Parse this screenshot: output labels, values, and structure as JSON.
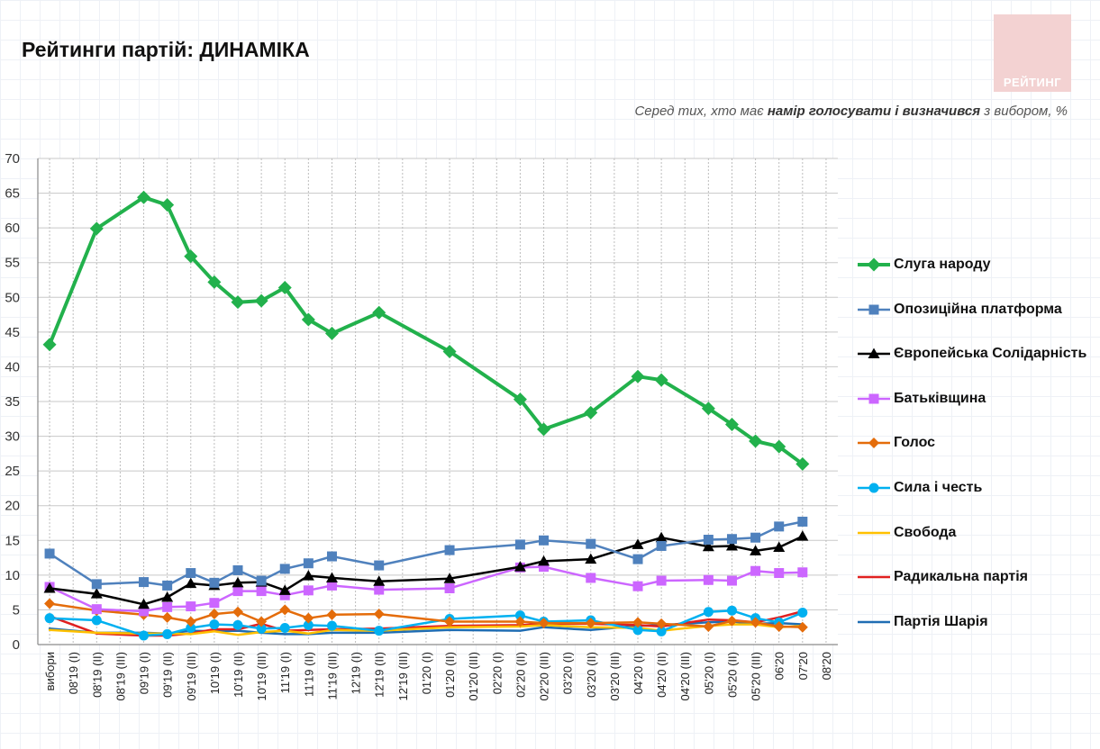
{
  "header": {
    "title": "Рейтинги партій: ДИНАМІКА",
    "subtitle_pre": "Серед тих, хто має ",
    "subtitle_bold": "намір голосувати і визначився",
    "subtitle_post": " з вибором, %",
    "logo_text": "РЕЙТИНГ"
  },
  "chart_data": {
    "type": "line",
    "title": "Рейтинги партій: ДИНАМІКА",
    "ylim": [
      0,
      70
    ],
    "yticks": [
      0,
      5,
      10,
      15,
      20,
      25,
      30,
      35,
      40,
      45,
      50,
      55,
      60,
      65,
      70
    ],
    "grid": true,
    "legend_position": "right",
    "categories": [
      "вибори",
      "08'19 (I)",
      "08'19 (II)",
      "08'19 (III)",
      "09'19 (I)",
      "09'19 (II)",
      "09'19 (III)",
      "10'19 (I)",
      "10'19 (II)",
      "10'19 (III)",
      "11'19 (I)",
      "11'19 (II)",
      "11'19 (III)",
      "12'19 (I)",
      "12'19 (II)",
      "12'19 (III)",
      "01'20 (I)",
      "01'20 (II)",
      "01'20 (III)",
      "02'20 (I)",
      "02'20 (II)",
      "02'20 (III)",
      "03'20 (I)",
      "03'20 (II)",
      "03'20 (III)",
      "04'20 (I)",
      "04'20 (II)",
      "04'20 (III)",
      "05'20 (I)",
      "05'20 (II)",
      "05'20 (III)",
      "06'20",
      "07'20",
      "08'20"
    ],
    "series": [
      {
        "name": "Слуга народу",
        "color": "#22b14c",
        "marker": "diamond",
        "width": 4,
        "points": [
          [
            0,
            43.2
          ],
          [
            2,
            59.9
          ],
          [
            4,
            64.4
          ],
          [
            5,
            63.3
          ],
          [
            6,
            55.9
          ],
          [
            7,
            52.2
          ],
          [
            8,
            49.3
          ],
          [
            9,
            49.5
          ],
          [
            10,
            51.4
          ],
          [
            11,
            46.8
          ],
          [
            12,
            44.8
          ],
          [
            14,
            47.8
          ],
          [
            17,
            42.2
          ],
          [
            20,
            35.3
          ],
          [
            21,
            31.0
          ],
          [
            23,
            33.4
          ],
          [
            25,
            38.6
          ],
          [
            26,
            38.1
          ],
          [
            28,
            34.0
          ],
          [
            29,
            31.7
          ],
          [
            30,
            29.3
          ],
          [
            31,
            28.5
          ],
          [
            32,
            26.0
          ]
        ]
      },
      {
        "name": "Опозиційна платформа",
        "color": "#4f81bd",
        "marker": "square",
        "width": 2.5,
        "points": [
          [
            0,
            13.1
          ],
          [
            2,
            8.7
          ],
          [
            4,
            9.0
          ],
          [
            5,
            8.5
          ],
          [
            6,
            10.3
          ],
          [
            7,
            8.9
          ],
          [
            8,
            10.7
          ],
          [
            9,
            9.2
          ],
          [
            10,
            10.9
          ],
          [
            11,
            11.7
          ],
          [
            12,
            12.7
          ],
          [
            14,
            11.4
          ],
          [
            17,
            13.6
          ],
          [
            20,
            14.4
          ],
          [
            21,
            15.0
          ],
          [
            23,
            14.5
          ],
          [
            25,
            12.3
          ],
          [
            26,
            14.2
          ],
          [
            28,
            15.1
          ],
          [
            29,
            15.2
          ],
          [
            30,
            15.4
          ],
          [
            31,
            17.0
          ],
          [
            32,
            17.7
          ]
        ]
      },
      {
        "name": "Європейська Солідарність",
        "color": "#000000",
        "marker": "triangle",
        "width": 2.5,
        "points": [
          [
            0,
            8.1
          ],
          [
            2,
            7.3
          ],
          [
            4,
            5.8
          ],
          [
            5,
            6.8
          ],
          [
            6,
            8.8
          ],
          [
            7,
            8.5
          ],
          [
            8,
            8.9
          ],
          [
            9,
            9.0
          ],
          [
            10,
            7.8
          ],
          [
            11,
            9.9
          ],
          [
            12,
            9.6
          ],
          [
            14,
            9.1
          ],
          [
            17,
            9.5
          ],
          [
            20,
            11.2
          ],
          [
            21,
            12.0
          ],
          [
            23,
            12.3
          ],
          [
            25,
            14.4
          ],
          [
            26,
            15.4
          ],
          [
            28,
            14.1
          ],
          [
            29,
            14.2
          ],
          [
            30,
            13.5
          ],
          [
            31,
            14.0
          ],
          [
            32,
            15.6
          ]
        ]
      },
      {
        "name": "Батьківщина",
        "color": "#cc66ff",
        "marker": "square",
        "width": 2.5,
        "points": [
          [
            0,
            8.3
          ],
          [
            2,
            5.1
          ],
          [
            4,
            4.8
          ],
          [
            5,
            5.4
          ],
          [
            6,
            5.5
          ],
          [
            7,
            6.0
          ],
          [
            8,
            7.7
          ],
          [
            9,
            7.7
          ],
          [
            10,
            7.1
          ],
          [
            11,
            7.8
          ],
          [
            12,
            8.5
          ],
          [
            14,
            7.9
          ],
          [
            17,
            8.1
          ],
          [
            20,
            11.1
          ],
          [
            21,
            11.2
          ],
          [
            23,
            9.6
          ],
          [
            25,
            8.4
          ],
          [
            26,
            9.2
          ],
          [
            28,
            9.3
          ],
          [
            29,
            9.2
          ],
          [
            30,
            10.6
          ],
          [
            31,
            10.3
          ],
          [
            32,
            10.4
          ]
        ]
      },
      {
        "name": "Голос",
        "color": "#e46c0a",
        "marker": "diamond",
        "width": 2.5,
        "points": [
          [
            0,
            5.9
          ],
          [
            2,
            4.9
          ],
          [
            4,
            4.3
          ],
          [
            5,
            3.9
          ],
          [
            6,
            3.3
          ],
          [
            7,
            4.4
          ],
          [
            8,
            4.7
          ],
          [
            9,
            3.3
          ],
          [
            10,
            5.0
          ],
          [
            11,
            3.8
          ],
          [
            12,
            4.3
          ],
          [
            14,
            4.4
          ],
          [
            17,
            3.3
          ],
          [
            20,
            3.3
          ],
          [
            21,
            3.1
          ],
          [
            23,
            3.1
          ],
          [
            25,
            3.2
          ],
          [
            26,
            3.0
          ],
          [
            28,
            2.6
          ],
          [
            29,
            3.4
          ],
          [
            30,
            3.2
          ],
          [
            31,
            2.6
          ],
          [
            32,
            2.5
          ]
        ]
      },
      {
        "name": "Сила і честь",
        "color": "#00b0f0",
        "marker": "circle",
        "width": 2.5,
        "points": [
          [
            0,
            3.8
          ],
          [
            2,
            3.5
          ],
          [
            4,
            1.3
          ],
          [
            5,
            1.5
          ],
          [
            6,
            2.4
          ],
          [
            7,
            2.9
          ],
          [
            8,
            2.8
          ],
          [
            9,
            2.3
          ],
          [
            10,
            2.4
          ],
          [
            11,
            2.8
          ],
          [
            12,
            2.7
          ],
          [
            14,
            2.0
          ],
          [
            17,
            3.7
          ],
          [
            20,
            4.2
          ],
          [
            21,
            3.3
          ],
          [
            23,
            3.5
          ],
          [
            25,
            2.1
          ],
          [
            26,
            1.9
          ],
          [
            28,
            4.7
          ],
          [
            29,
            4.9
          ],
          [
            30,
            3.8
          ],
          [
            31,
            3.2
          ],
          [
            32,
            4.6
          ]
        ]
      },
      {
        "name": "Свобода",
        "color": "#ffc000",
        "marker": "none",
        "width": 2.5,
        "points": [
          [
            0,
            2.1
          ],
          [
            2,
            1.7
          ],
          [
            4,
            1.6
          ],
          [
            5,
            1.6
          ],
          [
            6,
            1.5
          ],
          [
            7,
            1.9
          ],
          [
            8,
            1.4
          ],
          [
            9,
            1.8
          ],
          [
            10,
            2.0
          ],
          [
            11,
            1.6
          ],
          [
            12,
            2.1
          ],
          [
            14,
            2.0
          ],
          [
            17,
            2.5
          ],
          [
            20,
            2.6
          ],
          [
            21,
            2.8
          ],
          [
            23,
            2.5
          ],
          [
            25,
            2.4
          ],
          [
            26,
            2.0
          ],
          [
            28,
            2.7
          ],
          [
            29,
            2.9
          ],
          [
            30,
            2.9
          ],
          [
            31,
            2.5
          ],
          [
            32,
            2.7
          ]
        ]
      },
      {
        "name": "Радикальна партія",
        "color": "#e02020",
        "marker": "none",
        "width": 2.5,
        "points": [
          [
            0,
            4.1
          ],
          [
            2,
            1.6
          ],
          [
            4,
            1.3
          ],
          [
            5,
            1.3
          ],
          [
            6,
            1.6
          ],
          [
            7,
            2.2
          ],
          [
            8,
            2.2
          ],
          [
            9,
            3.0
          ],
          [
            10,
            2.0
          ],
          [
            11,
            2.1
          ],
          [
            12,
            2.2
          ],
          [
            14,
            2.3
          ],
          [
            17,
            2.7
          ],
          [
            20,
            2.8
          ],
          [
            21,
            3.0
          ],
          [
            23,
            3.0
          ],
          [
            25,
            2.8
          ],
          [
            26,
            2.6
          ],
          [
            28,
            3.6
          ],
          [
            29,
            3.5
          ],
          [
            30,
            3.2
          ],
          [
            31,
            3.9
          ],
          [
            32,
            4.8
          ]
        ]
      },
      {
        "name": "Партія Шарія",
        "color": "#1f6db3",
        "marker": "none",
        "width": 2.5,
        "points": [
          [
            0,
            2.3
          ],
          [
            2,
            1.7
          ],
          [
            4,
            1.7
          ],
          [
            5,
            1.6
          ],
          [
            6,
            2.0
          ],
          [
            7,
            1.9
          ],
          [
            8,
            2.0
          ],
          [
            9,
            1.7
          ],
          [
            10,
            1.5
          ],
          [
            11,
            1.5
          ],
          [
            12,
            1.7
          ],
          [
            14,
            1.7
          ],
          [
            17,
            2.1
          ],
          [
            20,
            2.0
          ],
          [
            21,
            2.5
          ],
          [
            23,
            2.1
          ],
          [
            25,
            2.7
          ],
          [
            26,
            2.8
          ],
          [
            28,
            3.2
          ],
          [
            29,
            3.3
          ],
          [
            30,
            3.0
          ],
          [
            31,
            3.1
          ],
          [
            32,
            2.9
          ]
        ]
      }
    ]
  }
}
